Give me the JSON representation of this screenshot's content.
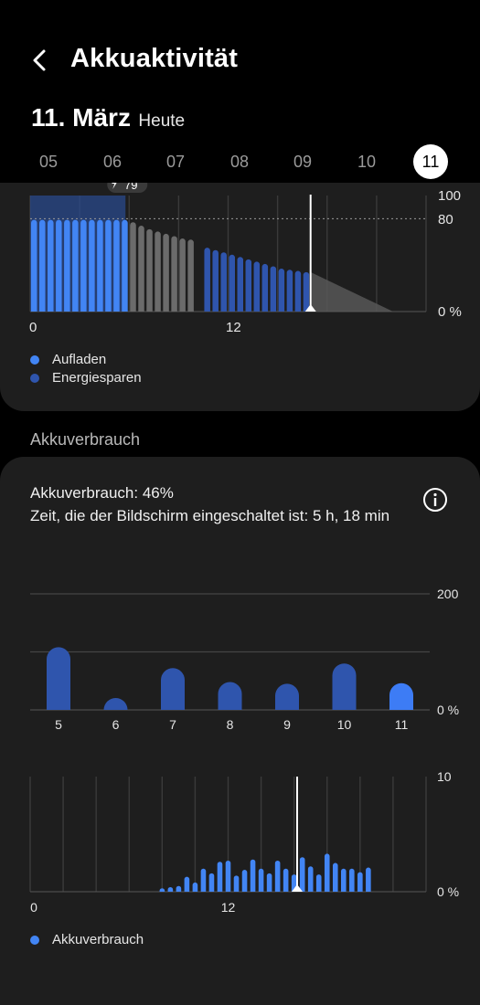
{
  "header": {
    "title": "Akkuaktivität",
    "date": "11. März",
    "date_sub": "Heute",
    "days": [
      "05",
      "06",
      "07",
      "08",
      "09",
      "10",
      "11"
    ],
    "selected_day": "11"
  },
  "level_chart": {
    "charge_badge": "79",
    "y_labels": {
      "top": "100",
      "mark": "80",
      "bottom": "0 %"
    },
    "x_labels": [
      "0",
      "12"
    ],
    "legend": [
      {
        "label": "Aufladen",
        "color": "#4285f4"
      },
      {
        "label": "Energiesparen",
        "color": "#2f55ad"
      }
    ]
  },
  "usage_section_title": "Akkuverbrauch",
  "usage": {
    "summary": "Akkuverbrauch: 46%",
    "screen_time": "Zeit, die der Bildschirm eingeschaltet ist: 5 h, 18 min"
  },
  "chart_data": [
    {
      "type": "bar",
      "title": "",
      "categories": [
        "5",
        "6",
        "7",
        "8",
        "9",
        "10",
        "11"
      ],
      "values": [
        108,
        5,
        72,
        48,
        45,
        80,
        46
      ],
      "ylim": [
        0,
        200
      ],
      "y_ticks": [
        "200",
        "0 %"
      ],
      "highlight_category": "11",
      "grid": true
    },
    {
      "type": "bar",
      "title": "",
      "x_labels": [
        "0",
        "12"
      ],
      "y_ticks": [
        "10",
        "0 %"
      ],
      "ylim": [
        0,
        10
      ],
      "hours": [
        8,
        8.5,
        9,
        9.5,
        10,
        10.5,
        11,
        11.5,
        12,
        12.5,
        13,
        13.5,
        14,
        14.5,
        15,
        15.5,
        16,
        16.5,
        17,
        17.5,
        18,
        18.5,
        19,
        19.5,
        20,
        20.5,
        21,
        21.5,
        22,
        22.5,
        23
      ],
      "values": [
        0.3,
        0.4,
        0.5,
        1.3,
        0.8,
        2.0,
        1.6,
        2.6,
        2.7,
        1.4,
        1.9,
        2.8,
        2.0,
        1.6,
        2.7,
        2.0,
        1.5,
        3.0,
        2.2,
        1.5,
        3.3,
        2.5,
        2.0,
        2.0,
        1.7,
        2.1,
        0,
        0,
        0,
        0,
        0
      ],
      "legend": [
        {
          "label": "Akkuverbrauch",
          "color": "#4285f4"
        }
      ]
    }
  ],
  "battery_level_data": {
    "type": "bar",
    "hours_start": 0,
    "step_hours": 0.5,
    "charging_levels": [
      79,
      79,
      79,
      79,
      79,
      79,
      79,
      79,
      79,
      79,
      79,
      79
    ],
    "discharge_levels": [
      77,
      74,
      71,
      69,
      67,
      65,
      63,
      62
    ],
    "power_saving_levels": [
      55,
      53,
      51,
      49,
      47,
      45,
      43,
      41,
      39,
      37,
      36,
      35,
      34
    ],
    "predicted_end_hour": 22
  }
}
